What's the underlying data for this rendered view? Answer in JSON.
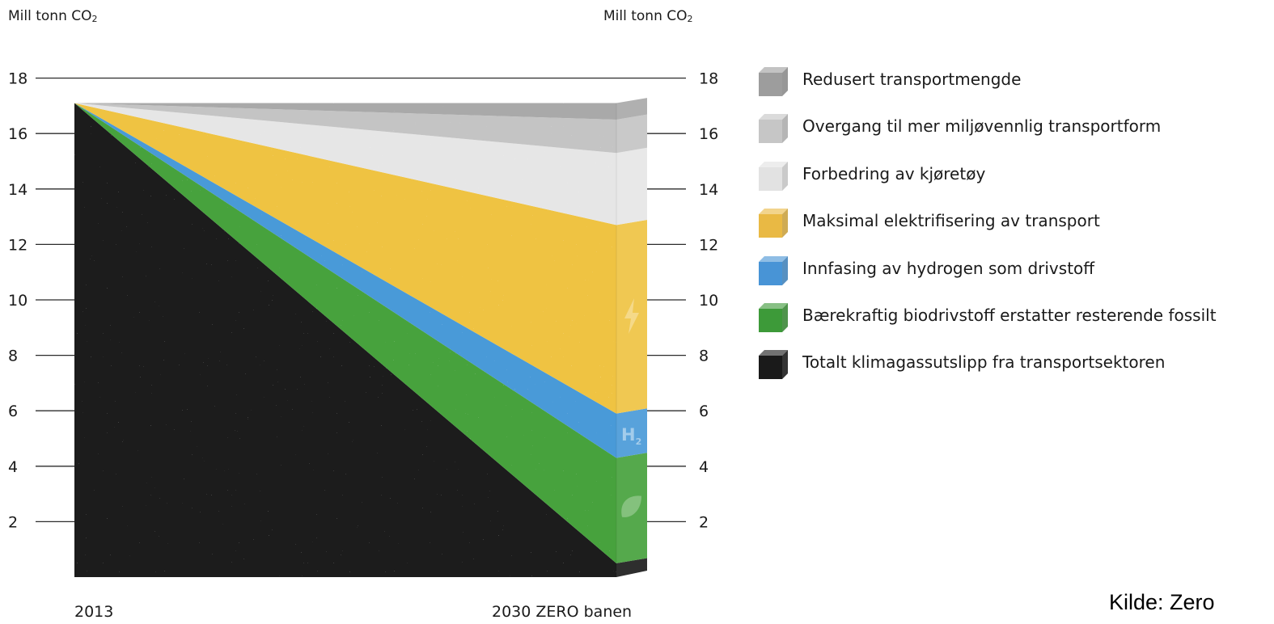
{
  "axis_unit_left": "Mill tonn CO",
  "axis_unit_right": "Mill tonn CO",
  "axis_unit_subscript": "2",
  "source": "Kilde: Zero",
  "chart_data": {
    "type": "area",
    "x": [
      "2013",
      "2030 ZERO banen"
    ],
    "xlabel_start": "2013",
    "xlabel_end": "2030 ZERO banen",
    "ylim": [
      0,
      18
    ],
    "yticks": [
      2,
      4,
      6,
      8,
      10,
      12,
      14,
      16,
      18
    ],
    "stacking": "stacked",
    "start_total": 17.1,
    "series": [
      {
        "name": "Totalt klimagassutslipp fra transportsektoren",
        "color": "#1c1c1c",
        "values": [
          17.1,
          0.5
        ]
      },
      {
        "name": "Bærekraftig biodrivstoff erstatter resterende fossilt",
        "color": "#46a23d",
        "values": [
          0,
          3.8
        ]
      },
      {
        "name": "Innfasing av hydrogen som drivstoff",
        "color": "#4a9ad8",
        "values": [
          0,
          1.6
        ]
      },
      {
        "name": "Maksimal elektrifisering av transport",
        "color": "#efc343",
        "values": [
          0,
          6.8
        ]
      },
      {
        "name": "Forbedring av kjøretøy",
        "color": "#e6e6e6",
        "values": [
          0,
          2.6
        ]
      },
      {
        "name": "Overgang til mer miljøvennlig transportform",
        "color": "#c4c4c4",
        "values": [
          0,
          1.2
        ]
      },
      {
        "name": "Redusert transportmengde",
        "color": "#a9a9a9",
        "values": [
          0,
          0.6
        ]
      }
    ],
    "legend": {
      "position": "right",
      "items": [
        {
          "label": "Redusert transportmengde",
          "color": "#9d9d9d"
        },
        {
          "label": "Overgang til mer miljøvennlig transportform",
          "color": "#c6c6c6"
        },
        {
          "label": "Forbedring av kjøretøy",
          "color": "#e2e2e2"
        },
        {
          "label": "Maksimal elektrifisering av transport",
          "color": "#e9b944"
        },
        {
          "label": "Innfasing av hydrogen som drivstoff",
          "color": "#4894d6"
        },
        {
          "label": "Bærekraftig biodrivstoff erstatter resterende fossilt",
          "color": "#3d9a39"
        },
        {
          "label": "Totalt klimagassutslipp fra transportsektoren",
          "color": "#1a1a1a"
        }
      ]
    },
    "end_icons": [
      {
        "series": "Maksimal elektrifisering av transport",
        "icon": "lightning-icon"
      },
      {
        "series": "Innfasing av hydrogen som drivstoff",
        "icon": "h2-icon",
        "text": "H",
        "subscript": "2"
      },
      {
        "series": "Bærekraftig biodrivstoff erstatter resterende fossilt",
        "icon": "leaf-icon"
      }
    ]
  }
}
